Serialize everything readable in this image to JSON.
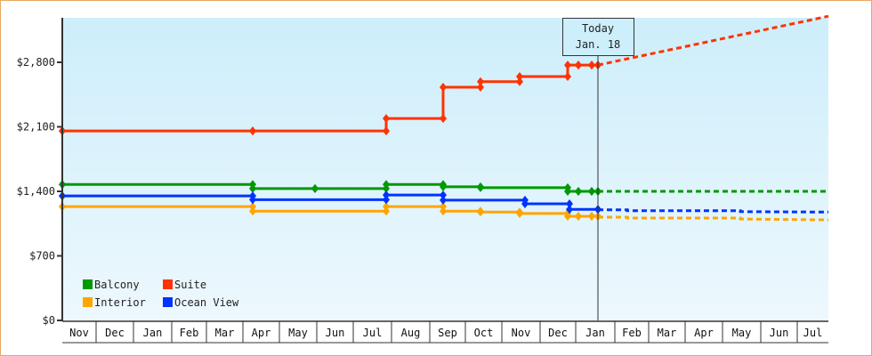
{
  "chart_data": {
    "type": "line",
    "title": "",
    "xlabel": "",
    "ylabel": "",
    "ylim": [
      0,
      3300
    ],
    "y_ticks": [
      {
        "label": "$0",
        "value": 0
      },
      {
        "label": "$700",
        "value": 700
      },
      {
        "label": "$1,400",
        "value": 1400
      },
      {
        "label": "$2,100",
        "value": 2100
      },
      {
        "label": "$2,800",
        "value": 2800
      }
    ],
    "x_months": [
      "Nov",
      "Dec",
      "Jan",
      "Feb",
      "Mar",
      "Apr",
      "May",
      "Jun",
      "Jul",
      "Aug",
      "Sep",
      "Oct",
      "Nov",
      "Dec",
      "Jan",
      "Feb",
      "Mar",
      "Apr",
      "May",
      "Jun",
      "Jul"
    ],
    "month_bounds": [
      70,
      108,
      150,
      193,
      232,
      273,
      314,
      356,
      397,
      440,
      483,
      523,
      564,
      607,
      647,
      691,
      729,
      770,
      812,
      855,
      896,
      931
    ],
    "grid": false,
    "legend_position": "bottom-left inside",
    "today_marker": {
      "line1": "Today",
      "line2": "Jan. 18",
      "x": 672
    },
    "series": [
      {
        "name": "Balcony",
        "color": "#009900",
        "steps": [
          [
            70,
            1475
          ],
          [
            284,
            1430
          ],
          [
            434,
            1475
          ],
          [
            498,
            1450
          ],
          [
            540,
            1440
          ],
          [
            638,
            1400
          ],
          [
            650,
            1400
          ],
          [
            665,
            1400
          ],
          [
            672,
            1400
          ]
        ],
        "markers": [
          70,
          284,
          354,
          434,
          498,
          540,
          638,
          650,
          665,
          672
        ],
        "projection": [
          [
            672,
            1400
          ],
          [
            931,
            1400
          ]
        ]
      },
      {
        "name": "Suite",
        "color": "#ff3300",
        "steps": [
          [
            70,
            2055
          ],
          [
            434,
            2190
          ],
          [
            498,
            2530
          ],
          [
            540,
            2590
          ],
          [
            584,
            2645
          ],
          [
            638,
            2770
          ],
          [
            650,
            2770
          ],
          [
            665,
            2770
          ],
          [
            672,
            2770
          ]
        ],
        "markers": [
          70,
          284,
          434,
          498,
          540,
          584,
          638,
          650,
          665,
          672
        ],
        "projection": [
          [
            672,
            2770
          ],
          [
            931,
            3300
          ]
        ]
      },
      {
        "name": "Interior",
        "color": "#ffa500",
        "steps": [
          [
            70,
            1235
          ],
          [
            284,
            1185
          ],
          [
            434,
            1235
          ],
          [
            498,
            1185
          ],
          [
            540,
            1175
          ],
          [
            584,
            1160
          ],
          [
            638,
            1130
          ],
          [
            650,
            1130
          ],
          [
            665,
            1130
          ],
          [
            672,
            1130
          ]
        ],
        "markers": [
          70,
          284,
          434,
          498,
          540,
          584,
          638,
          650,
          665,
          672
        ],
        "projection": [
          [
            672,
            1120
          ],
          [
            705,
            1120
          ],
          [
            705,
            1110
          ],
          [
            832,
            1110
          ],
          [
            832,
            1100
          ],
          [
            931,
            1090
          ]
        ]
      },
      {
        "name": "Ocean View",
        "color": "#0033ff",
        "steps": [
          [
            70,
            1350
          ],
          [
            284,
            1310
          ],
          [
            434,
            1360
          ],
          [
            498,
            1305
          ],
          [
            590,
            1265
          ],
          [
            640,
            1205
          ],
          [
            672,
            1205
          ]
        ],
        "markers": [
          70,
          284,
          434,
          498,
          590,
          640,
          672
        ],
        "projection": [
          [
            672,
            1200
          ],
          [
            705,
            1200
          ],
          [
            705,
            1190
          ],
          [
            832,
            1190
          ],
          [
            832,
            1180
          ],
          [
            931,
            1175
          ]
        ]
      }
    ]
  },
  "legend": [
    {
      "label": "Balcony",
      "color": "#009900"
    },
    {
      "label": "Suite",
      "color": "#ff3300"
    },
    {
      "label": "Interior",
      "color": "#ffa500"
    },
    {
      "label": "Ocean View",
      "color": "#0033ff"
    }
  ]
}
